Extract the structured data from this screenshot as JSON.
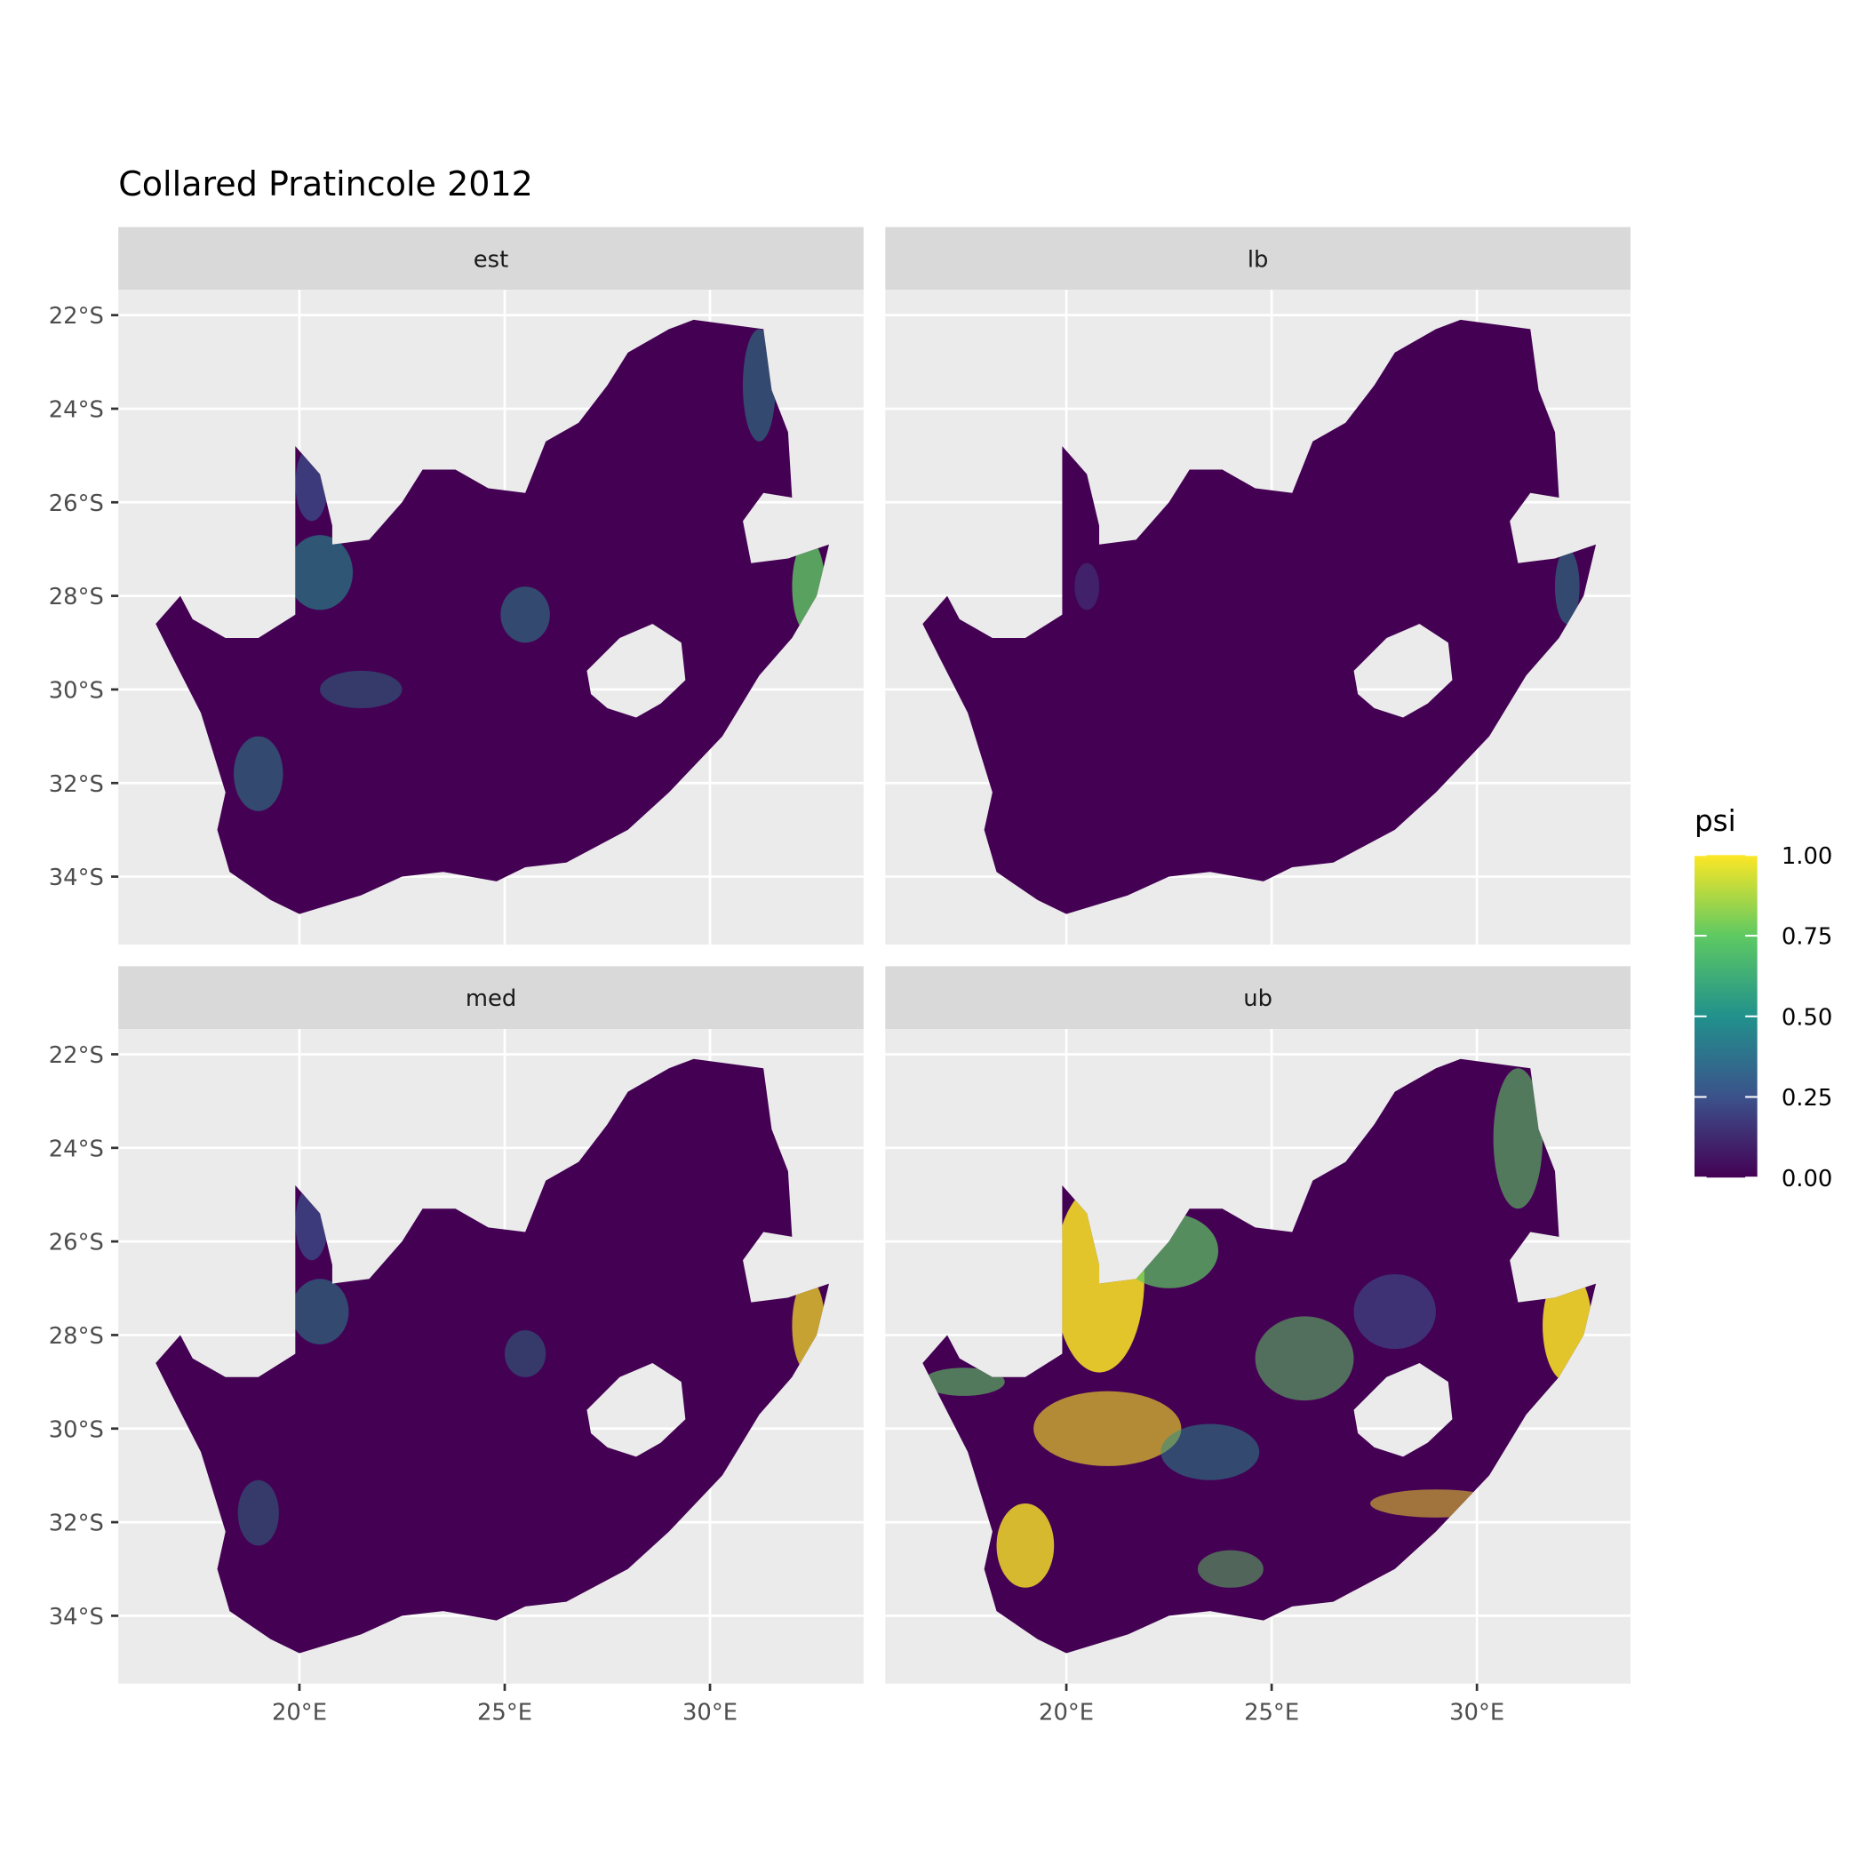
{
  "map": {
    "title": "Collared Pratincole 2012",
    "panels": [
      "est",
      "lb",
      "med",
      "ub"
    ],
    "xlim": [
      15.59,
      33.74
    ],
    "ylim": [
      -35.45,
      -21.46
    ],
    "xticks": [
      {
        "value": 20,
        "label": "20°E"
      },
      {
        "value": 25,
        "label": "25°E"
      },
      {
        "value": 30,
        "label": "30°E"
      }
    ],
    "yticks": [
      {
        "value": -22,
        "label": "22°S"
      },
      {
        "value": -24,
        "label": "24°S"
      },
      {
        "value": -26,
        "label": "26°S"
      },
      {
        "value": -28,
        "label": "28°S"
      },
      {
        "value": -30,
        "label": "30°S"
      },
      {
        "value": -32,
        "label": "32°S"
      },
      {
        "value": -34,
        "label": "34°S"
      }
    ],
    "legend": {
      "title": "psi",
      "ticks": [
        {
          "value": 0,
          "label": "0.00"
        },
        0.25,
        {
          "value": 0.5,
          "label": "0.50"
        },
        0.75,
        {
          "value": 1,
          "label": "1.00"
        }
      ],
      "colors": [
        "#440154",
        "#3b528b",
        "#21918c",
        "#5ec962",
        "#fde725"
      ]
    }
  }
}
